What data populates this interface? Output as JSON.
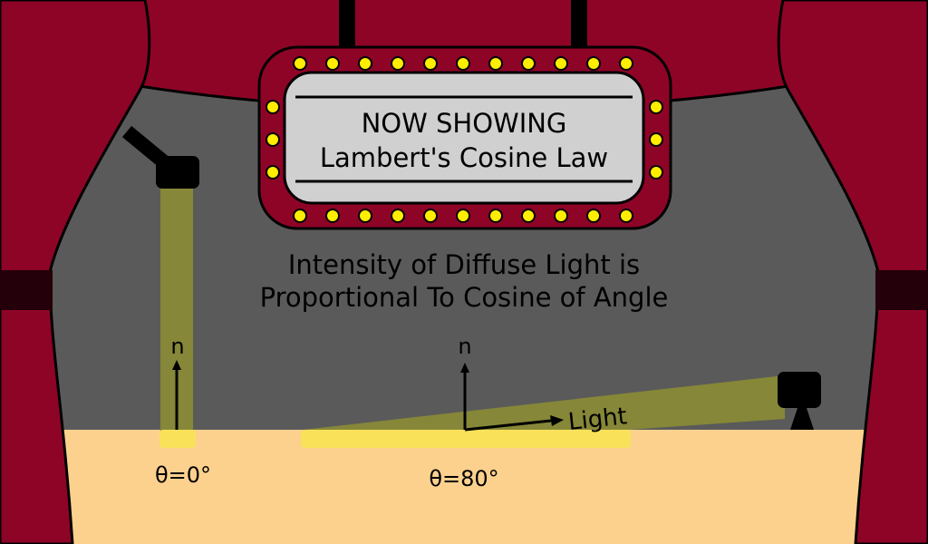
{
  "marquee": {
    "line1": "NOW SHOWING",
    "line2": "Lambert's Cosine Law"
  },
  "caption": {
    "line1": "Intensity of Diffuse Light is",
    "line2": "Proportional To Cosine of Angle"
  },
  "left_example": {
    "normal_label": "n",
    "angle_label": "θ=0°",
    "angle_deg": 0
  },
  "right_example": {
    "normal_label": "n",
    "light_label": "Light",
    "angle_label": "θ=80°",
    "angle_deg": 80
  },
  "colors": {
    "curtain": "#8e0427",
    "curtain_band": "#24000a",
    "backdrop": "#5a5a5a",
    "stage_floor": "#fcd18e",
    "light_beam": "#868738",
    "lit_patch": "#f9e15a",
    "bulb": "#ffee00",
    "sign_panel": "#d0d0d0",
    "ink": "#000000"
  }
}
